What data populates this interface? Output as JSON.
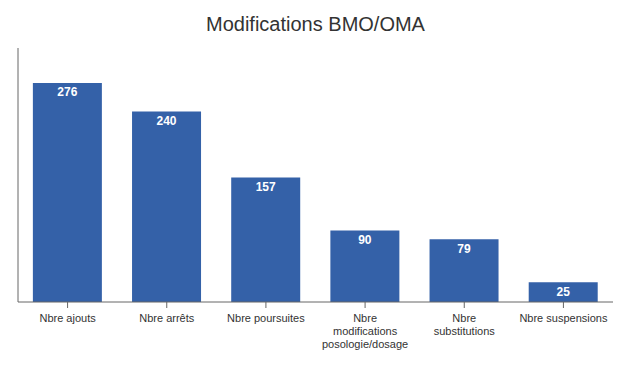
{
  "chart_data": {
    "type": "bar",
    "title": "Modifications BMO/OMA",
    "categories": [
      "Nbre ajouts",
      "Nbre arrêts",
      "Nbre poursuites",
      "Nbre\nmodifications\nposologie/dosage",
      "Nbre\nsubstitutions",
      "Nbre suspensions"
    ],
    "values": [
      276,
      240,
      157,
      90,
      79,
      25
    ],
    "color": "#3461A8",
    "ylim": [
      0,
      320
    ],
    "grid": false,
    "data_labels": true,
    "tick_labels": "x"
  }
}
